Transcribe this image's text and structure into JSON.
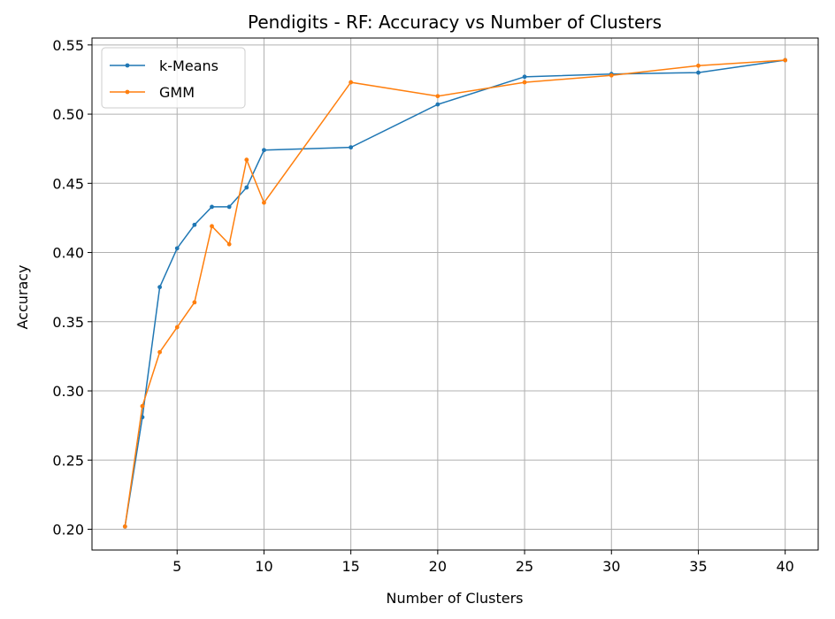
{
  "chart_data": {
    "type": "line",
    "title": "Pendigits - RF: Accuracy vs Number of Clusters",
    "xlabel": "Number of Clusters",
    "ylabel": "Accuracy",
    "xlim": [
      0.1,
      41.9
    ],
    "ylim": [
      0.185,
      0.555
    ],
    "xticks": [
      5,
      10,
      15,
      20,
      25,
      30,
      35,
      40
    ],
    "xtick_labels": [
      "5",
      "10",
      "15",
      "20",
      "25",
      "30",
      "35",
      "40"
    ],
    "yticks": [
      0.2,
      0.25,
      0.3,
      0.35,
      0.4,
      0.45,
      0.5,
      0.55
    ],
    "ytick_labels": [
      "0.20",
      "0.25",
      "0.30",
      "0.35",
      "0.40",
      "0.45",
      "0.50",
      "0.55"
    ],
    "grid": true,
    "legend_position": "top-left",
    "series": [
      {
        "name": "k-Means",
        "color": "#1f77b4",
        "x": [
          2,
          3,
          4,
          5,
          6,
          7,
          8,
          9,
          10,
          15,
          20,
          25,
          30,
          35,
          40
        ],
        "y": [
          0.202,
          0.281,
          0.375,
          0.403,
          0.42,
          0.433,
          0.433,
          0.447,
          0.474,
          0.476,
          0.507,
          0.527,
          0.529,
          0.53,
          0.539
        ]
      },
      {
        "name": "GMM",
        "color": "#ff7f0e",
        "x": [
          2,
          3,
          4,
          5,
          6,
          7,
          8,
          9,
          10,
          15,
          20,
          25,
          30,
          35,
          40
        ],
        "y": [
          0.202,
          0.289,
          0.328,
          0.346,
          0.364,
          0.419,
          0.406,
          0.467,
          0.436,
          0.523,
          0.513,
          0.523,
          0.528,
          0.535,
          0.539
        ]
      }
    ]
  }
}
